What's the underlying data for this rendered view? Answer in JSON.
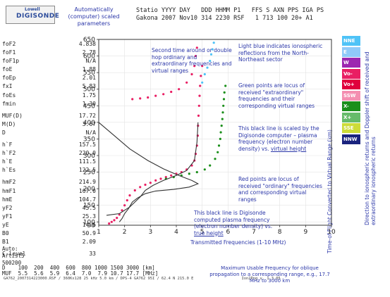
{
  "logo": {
    "line1": "Lowell",
    "line2": "DIGISONDE"
  },
  "auto_label": "Automatically (computer) scaled parameters",
  "header": {
    "line1": "Statio YYYY DAY   DDD HHMM P1   FFS S AXN PPS IGA PS",
    "line2": "Gakona 2007 Nov10 314 2230 RSF   1 713 100 20+ A1"
  },
  "params": [
    {
      "name": "foF2",
      "value": "4.838"
    },
    {
      "name": "foF1",
      "value": "2.78"
    },
    {
      "name": "foF1p",
      "value": "N/A"
    },
    {
      "name": "foE",
      "value": "1.88"
    },
    {
      "name": "foEp",
      "value": "2.01"
    },
    {
      "name": "fxI",
      "value": "5.83"
    },
    {
      "name": "foEs",
      "value": "1.75"
    },
    {
      "name": "fmin",
      "value": "1.30"
    },
    {
      "name": "",
      "value": ""
    },
    {
      "name": "MUF(D)",
      "value": "17.72"
    },
    {
      "name": "M(D)",
      "value": "3.67"
    },
    {
      "name": "D",
      "value": "N/A"
    },
    {
      "name": "",
      "value": ""
    },
    {
      "name": "h`F",
      "value": "157.5"
    },
    {
      "name": "h`F2",
      "value": "220.0"
    },
    {
      "name": "h`E",
      "value": "111.5"
    },
    {
      "name": "h`Es",
      "value": "122.5"
    },
    {
      "name": "",
      "value": ""
    },
    {
      "name": "hmF2",
      "value": "214.9"
    },
    {
      "name": "hmF1",
      "value": "167.0"
    },
    {
      "name": "hmE",
      "value": "104.7"
    },
    {
      "name": "yF2",
      "value": "45.5"
    },
    {
      "name": "yF1",
      "value": "25.3"
    },
    {
      "name": "yE",
      "value": "14.6"
    },
    {
      "name": "B0",
      "value": "50.9"
    },
    {
      "name": "B1",
      "value": "2.09"
    },
    {
      "name": "",
      "value": ""
    },
    {
      "name": "C-level",
      "value": "33"
    }
  ],
  "auto_line1": "Auto:",
  "auto_line2": "Artist5",
  "auto_line3": "500200",
  "muf_d_row": "D    100  200  400  600  800 1000 1500 3000 [km]",
  "muf_row": "MUF  5.5  5.6  5.9  6.4  7.0  7.9 10.7 17.7 [MHz]",
  "footer": "GA762_2007314223000.RSF / 360Kx128 25 kHz 5.0 km / DPS-4 GA762 95I / 62.4 N 215.0 E                     Ion2Png v. 1.3.05",
  "legend": [
    {
      "label": "NNE",
      "color": "#4fc3f7"
    },
    {
      "label": "E",
      "color": "#90caf9"
    },
    {
      "label": "W",
      "color": "#9c27b0"
    },
    {
      "label": "Vo-",
      "color": "#e91e63"
    },
    {
      "label": "Vo+",
      "color": "#e0003c"
    },
    {
      "label": "SSW",
      "color": "#f48fb1"
    },
    {
      "label": "X-",
      "color": "#1b8f1b"
    },
    {
      "label": "X+",
      "color": "#66bb6a"
    },
    {
      "label": "SSE",
      "color": "#cddc39"
    },
    {
      "label": "NNW",
      "color": "#1a237e"
    }
  ],
  "right_axis_label": "Time-of-Flight Converted to Virtual Range (km)",
  "right_note": "Direction to ionospheric returns and Doppler shift of received and extraordinary ionospheric returns",
  "annotations": {
    "second_time": "Second time around or double hop ordinary and extraordinary frequencies and virtual ranges",
    "light_blue": "Light blue indicates ionospheric reflections from the North-Northeast sector",
    "green": "Green points are locus of received \"extraordinary\" frequencies and their corresponding virtual ranges",
    "black_virtual_1": "This black line is scaled by the Digisonde computer – plasma frequency (electron number density) vs. ",
    "black_virtual_2": "virtual height",
    "red": "Red points are locus of received \"ordinary\" frequencies and corresponding virtual ranges",
    "black_true_1": "This black line is Digisonde computed plasma frequency (electron number density) vs. ",
    "black_true_2": "true height",
    "transmitted": "Transmitted Frequencies (1-10 MHz)",
    "muf_note": "Maximum Usable Frequency for oblique propagation to a corresponding range, e.g., 17.7 MHz to 3000 km"
  },
  "chart_data": {
    "type": "scatter",
    "title": "",
    "xlabel": "Transmitted Frequencies (1-10 MHz)",
    "ylabel": "Time-of-Flight Converted to Virtual Range (km)",
    "xlim": [
      1,
      10
    ],
    "ylim": [
      90,
      650
    ],
    "x_ticks": [
      1,
      2,
      3,
      4,
      5,
      6,
      7,
      8,
      9,
      10
    ],
    "y_ticks": [
      100,
      150,
      200,
      250,
      300,
      350,
      400,
      450,
      500,
      550,
      600,
      650
    ],
    "y_tick_labels": [
      "100",
      "150",
      "200",
      "250",
      "300",
      "350",
      "400",
      "450",
      "500",
      "550",
      "600",
      "650"
    ],
    "bottom_left_tick": "90",
    "series": [
      {
        "name": "Vo-",
        "color": "#e91e63",
        "points": [
          [
            1.4,
            95
          ],
          [
            1.5,
            100
          ],
          [
            1.6,
            105
          ],
          [
            1.7,
            112
          ],
          [
            1.8,
            122
          ],
          [
            1.9,
            135
          ],
          [
            2.0,
            150
          ],
          [
            2.1,
            165
          ],
          [
            2.2,
            180
          ],
          [
            2.4,
            195
          ],
          [
            2.6,
            205
          ],
          [
            2.8,
            212
          ],
          [
            3.0,
            218
          ],
          [
            3.2,
            225
          ],
          [
            3.4,
            230
          ],
          [
            3.6,
            235
          ],
          [
            3.8,
            240
          ],
          [
            4.0,
            245
          ],
          [
            4.2,
            250
          ],
          [
            4.4,
            258
          ],
          [
            4.6,
            270
          ],
          [
            4.7,
            285
          ],
          [
            4.75,
            305
          ],
          [
            4.8,
            330
          ],
          [
            4.83,
            360
          ],
          [
            4.84,
            390
          ],
          [
            4.86,
            420
          ],
          [
            4.88,
            450
          ],
          [
            4.9,
            480
          ],
          [
            4.92,
            510
          ],
          [
            4.95,
            540
          ],
          [
            5.0,
            570
          ],
          [
            2.3,
            470
          ],
          [
            2.6,
            472
          ],
          [
            2.9,
            475
          ],
          [
            3.2,
            480
          ],
          [
            3.5,
            485
          ],
          [
            3.8,
            492
          ],
          [
            4.1,
            500
          ],
          [
            4.4,
            520
          ],
          [
            4.6,
            545
          ],
          [
            4.7,
            570
          ],
          [
            4.75,
            600
          ],
          [
            4.8,
            625
          ]
        ]
      },
      {
        "name": "X-",
        "color": "#1b8f1b",
        "points": [
          [
            3.6,
            230
          ],
          [
            3.9,
            235
          ],
          [
            4.2,
            240
          ],
          [
            4.5,
            245
          ],
          [
            4.8,
            250
          ],
          [
            5.1,
            258
          ],
          [
            5.3,
            270
          ],
          [
            5.5,
            290
          ],
          [
            5.6,
            310
          ],
          [
            5.65,
            330
          ],
          [
            5.7,
            350
          ],
          [
            5.72,
            370
          ],
          [
            5.75,
            390
          ],
          [
            5.78,
            410
          ],
          [
            5.8,
            430
          ],
          [
            5.82,
            450
          ],
          [
            5.84,
            470
          ],
          [
            5.86,
            490
          ],
          [
            5.9,
            510
          ]
        ]
      },
      {
        "name": "NNE",
        "color": "#4fc3f7",
        "points": [
          [
            5.0,
            520
          ],
          [
            5.1,
            545
          ],
          [
            5.2,
            565
          ],
          [
            5.3,
            585
          ],
          [
            5.35,
            605
          ],
          [
            5.4,
            620
          ],
          [
            5.45,
            640
          ]
        ]
      }
    ],
    "lines": [
      {
        "name": "virtual height profile",
        "points": [
          [
            1.3,
            120
          ],
          [
            1.8,
            125
          ],
          [
            2.2,
            145
          ],
          [
            2.6,
            175
          ],
          [
            2.8,
            195
          ],
          [
            3.1,
            210
          ],
          [
            3.5,
            225
          ],
          [
            4.0,
            240
          ],
          [
            4.4,
            255
          ],
          [
            4.7,
            285
          ],
          [
            4.8,
            340
          ],
          [
            4.84,
            400
          ]
        ]
      },
      {
        "name": "true height profile",
        "points": [
          [
            1.0,
            400
          ],
          [
            1.6,
            360
          ],
          [
            2.2,
            320
          ],
          [
            2.9,
            285
          ],
          [
            3.5,
            260
          ],
          [
            4.0,
            243
          ],
          [
            4.6,
            225
          ],
          [
            4.84,
            215
          ],
          [
            4.5,
            205
          ],
          [
            3.9,
            198
          ],
          [
            3.2,
            193
          ],
          [
            2.8,
            185
          ],
          [
            2.5,
            172
          ],
          [
            2.3,
            160
          ],
          [
            2.15,
            140
          ],
          [
            2.0,
            125
          ],
          [
            1.9,
            110
          ],
          [
            1.8,
            100
          ]
        ]
      }
    ]
  }
}
